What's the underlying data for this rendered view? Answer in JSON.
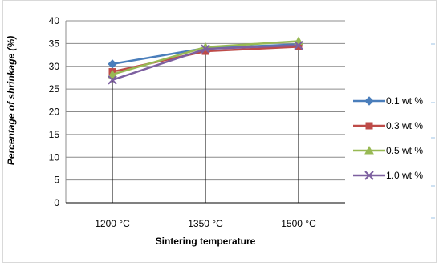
{
  "chart_data": {
    "type": "line",
    "categories": [
      "1200 °C",
      "1350 °C",
      "1500 °C"
    ],
    "series": [
      {
        "name": "0.1 wt %",
        "values": [
          30.5,
          34.0,
          34.8
        ],
        "color": "#4a7ebb",
        "marker": "diamond"
      },
      {
        "name": "0.3 wt %",
        "values": [
          28.8,
          33.3,
          34.3
        ],
        "color": "#be4b48",
        "marker": "square"
      },
      {
        "name": "0.5 wt %",
        "values": [
          28.2,
          34.2,
          35.5
        ],
        "color": "#98b954",
        "marker": "triangle"
      },
      {
        "name": "1.0 wt %",
        "values": [
          27.0,
          33.8,
          34.6
        ],
        "color": "#7d60a0",
        "marker": "x"
      }
    ],
    "xlabel": "Sintering temperature",
    "ylabel": "Percentage of shrinkage (%)",
    "ylim": [
      0,
      40
    ],
    "y_ticks": [
      "0",
      "5",
      "10",
      "15",
      "20",
      "25",
      "30",
      "35",
      "40"
    ],
    "grid": true,
    "legend_position": "right"
  }
}
